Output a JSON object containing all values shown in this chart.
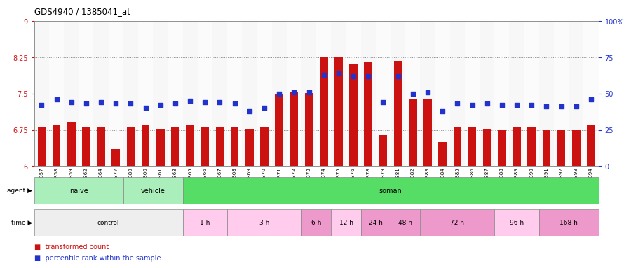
{
  "title": "GDS4940 / 1385041_at",
  "gsm_labels": [
    "GSM338857",
    "GSM338858",
    "GSM338859",
    "GSM338862",
    "GSM338864",
    "GSM338877",
    "GSM338880",
    "GSM338860",
    "GSM338861",
    "GSM338863",
    "GSM338865",
    "GSM338866",
    "GSM338867",
    "GSM338868",
    "GSM338869",
    "GSM338870",
    "GSM338871",
    "GSM338872",
    "GSM338873",
    "GSM338874",
    "GSM338875",
    "GSM338876",
    "GSM338878",
    "GSM338879",
    "GSM338881",
    "GSM338882",
    "GSM338883",
    "GSM338884",
    "GSM338885",
    "GSM338886",
    "GSM338887",
    "GSM338888",
    "GSM338889",
    "GSM338890",
    "GSM338891",
    "GSM338892",
    "GSM338893",
    "GSM338894"
  ],
  "bar_values": [
    6.8,
    6.85,
    6.9,
    6.82,
    6.8,
    6.35,
    6.8,
    6.85,
    6.78,
    6.82,
    6.85,
    6.8,
    6.8,
    6.8,
    6.78,
    6.8,
    7.5,
    7.52,
    7.51,
    8.25,
    8.25,
    8.1,
    8.15,
    6.65,
    8.18,
    7.4,
    7.38,
    6.5,
    6.8,
    6.8,
    6.78,
    6.75,
    6.8,
    6.8,
    6.75,
    6.75,
    6.75,
    6.85
  ],
  "blue_values": [
    42,
    46,
    44,
    43,
    44,
    43,
    43,
    40,
    42,
    43,
    45,
    44,
    44,
    43,
    38,
    40,
    50,
    51,
    51,
    63,
    64,
    62,
    62,
    44,
    62,
    50,
    51,
    38,
    43,
    42,
    43,
    42,
    42,
    42,
    41,
    41,
    41,
    46
  ],
  "bar_color": "#cc1111",
  "blue_color": "#2233cc",
  "y_min": 6.0,
  "y_max": 9.0,
  "yr_min": 0,
  "yr_max": 100,
  "yticks_left": [
    6.0,
    6.75,
    7.5,
    8.25,
    9.0
  ],
  "ytick_labels_left": [
    "6",
    "6.75",
    "7.5",
    "8.25",
    "9"
  ],
  "yticks_right": [
    0,
    25,
    50,
    75,
    100
  ],
  "ytick_labels_right": [
    "0",
    "25",
    "50",
    "75",
    "100%"
  ],
  "hlines": [
    6.75,
    7.5,
    8.25
  ],
  "agent_groups": [
    {
      "label": "naive",
      "start": 0,
      "end": 6,
      "color": "#aaeebb"
    },
    {
      "label": "vehicle",
      "start": 6,
      "end": 10,
      "color": "#aaeebb"
    },
    {
      "label": "soman",
      "start": 10,
      "end": 38,
      "color": "#55dd66"
    }
  ],
  "time_groups": [
    {
      "label": "control",
      "start": 0,
      "end": 10,
      "color": "#eeeeee"
    },
    {
      "label": "1 h",
      "start": 10,
      "end": 13,
      "color": "#ffccee"
    },
    {
      "label": "3 h",
      "start": 13,
      "end": 18,
      "color": "#ffccee"
    },
    {
      "label": "6 h",
      "start": 18,
      "end": 20,
      "color": "#ee99cc"
    },
    {
      "label": "12 h",
      "start": 20,
      "end": 22,
      "color": "#ffccee"
    },
    {
      "label": "24 h",
      "start": 22,
      "end": 24,
      "color": "#ee99cc"
    },
    {
      "label": "48 h",
      "start": 24,
      "end": 26,
      "color": "#ee99cc"
    },
    {
      "label": "72 h",
      "start": 26,
      "end": 31,
      "color": "#ee99cc"
    },
    {
      "label": "96 h",
      "start": 31,
      "end": 34,
      "color": "#ffccee"
    },
    {
      "label": "168 h",
      "start": 34,
      "end": 38,
      "color": "#ee99cc"
    }
  ],
  "bg_color": "#ffffff",
  "chart_bg": "#ffffff"
}
